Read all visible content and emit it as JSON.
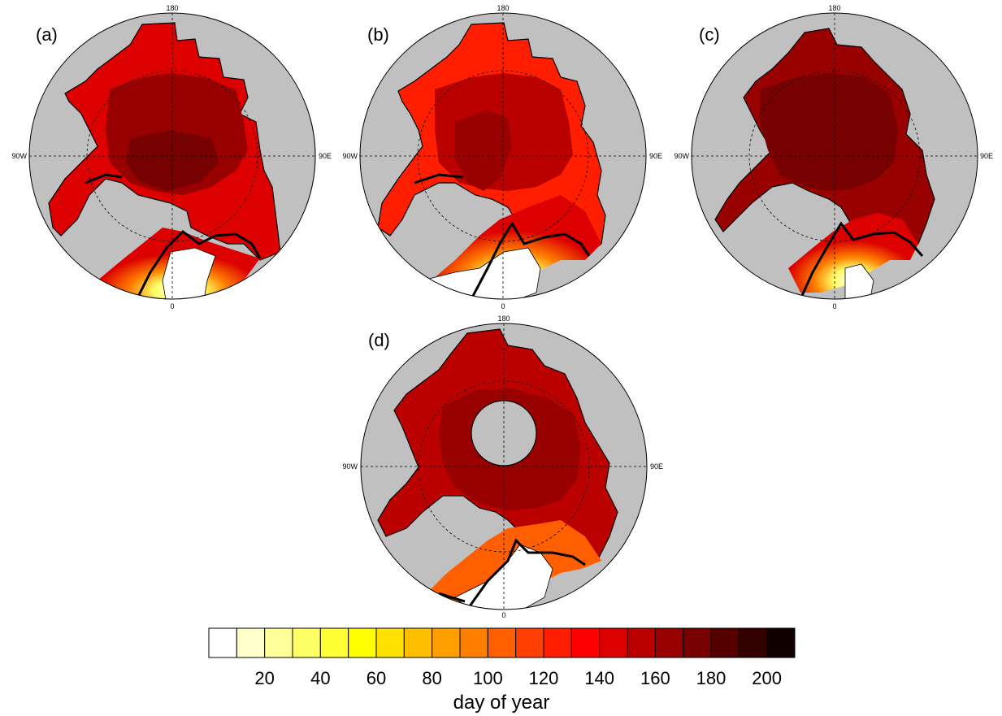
{
  "panels": [
    {
      "id": "a",
      "label": "(a)"
    },
    {
      "id": "b",
      "label": "(b)"
    },
    {
      "id": "c",
      "label": "(c)"
    },
    {
      "id": "d",
      "label": "(d)"
    }
  ],
  "longitude_labels": {
    "top": "180",
    "bottom": "0",
    "left": "90W",
    "right": "90E"
  },
  "colorbar": {
    "title": "day of year",
    "tick_labels": [
      "20",
      "40",
      "60",
      "80",
      "100",
      "120",
      "140",
      "160",
      "180",
      "200"
    ],
    "colors": [
      "#ffffff",
      "#ffffcc",
      "#ffff99",
      "#ffff66",
      "#ffff33",
      "#ffff00",
      "#ffe100",
      "#ffbf00",
      "#ff9f00",
      "#ff7f00",
      "#ff5f00",
      "#ff3f00",
      "#ff1f00",
      "#ff0000",
      "#dd0000",
      "#bb0000",
      "#990000",
      "#770000",
      "#550000",
      "#330000",
      "#110000"
    ]
  },
  "colors": {
    "land": "#c0c0c0",
    "no_data": "#ffffff",
    "outline": "#000000"
  }
}
